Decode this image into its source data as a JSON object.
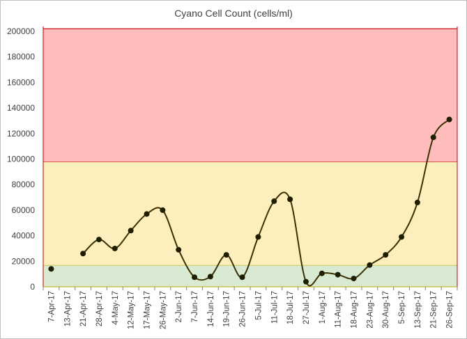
{
  "chart_data": {
    "type": "line",
    "title": "Cyano Cell Count (cells/ml)",
    "xlabel": "",
    "ylabel": "",
    "ylim": [
      0,
      200000
    ],
    "yticks": [
      0,
      20000,
      40000,
      60000,
      80000,
      100000,
      120000,
      140000,
      160000,
      180000,
      200000
    ],
    "grid": false,
    "categories": [
      "7-Apr-17",
      "13-Apr-17",
      "21-Apr-17",
      "28-Apr-17",
      "4-May-17",
      "12-May-17",
      "17-May-17",
      "26-May-17",
      "2-Jun-17",
      "7-Jun-17",
      "14-Jun-17",
      "19-Jun-17",
      "26-Jun-17",
      "5-Jul-17",
      "11-Jul-17",
      "18-Jul-17",
      "27-Jul-17",
      "1-Aug-17",
      "11-Aug-17",
      "18-Aug-17",
      "23-Aug-17",
      "30-Aug-17",
      "5-Sep-17",
      "13-Sep-17",
      "21-Sep-17",
      "26-Sep-17"
    ],
    "series": [
      {
        "values": [
          14000,
          null,
          26000,
          37000,
          30000,
          44000,
          57000,
          60000,
          29000,
          7500,
          8000,
          25000,
          7500,
          39000,
          67000,
          68500,
          4000,
          10500,
          9500,
          6500,
          17000,
          25000,
          39000,
          66000,
          117000,
          131000
        ],
        "color": "#3a3000",
        "marker_color": "#1e1e00"
      }
    ],
    "bands": [
      {
        "from": 0,
        "to": 17000,
        "fill": "#d9ead3",
        "line": "#b8a800"
      },
      {
        "from": 17000,
        "to": 98000,
        "fill": "#fdeebd",
        "line": "#c00000"
      },
      {
        "from": 98000,
        "to": 202000,
        "fill": "#ffbcbc",
        "line": "#c00000"
      }
    ]
  }
}
